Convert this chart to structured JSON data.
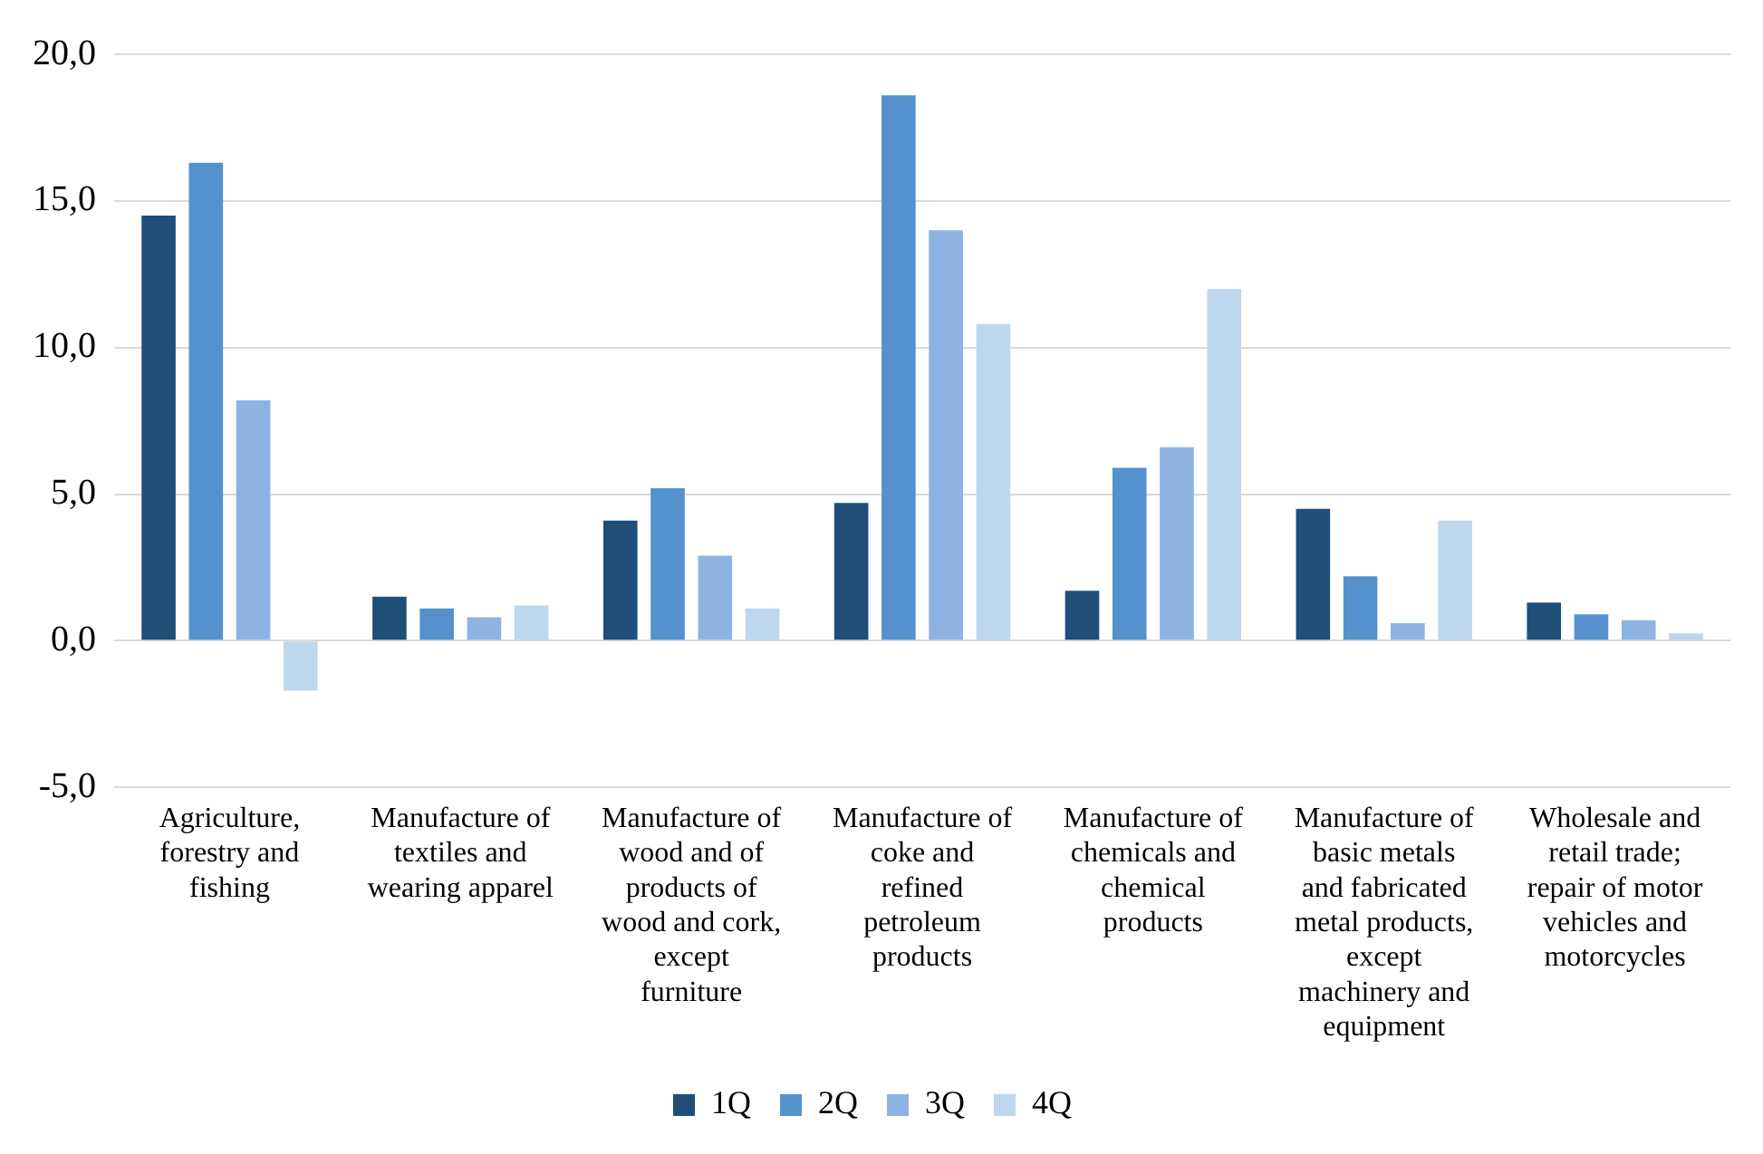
{
  "chart_data": {
    "type": "bar",
    "categories": [
      "Agriculture, forestry and fishing",
      "Manufacture of textiles and wearing apparel",
      "Manufacture of wood and of products of wood and cork, except furniture",
      "Manufacture of coke and refined petroleum products",
      "Manufacture of chemicals and chemical products",
      "Manufacture of basic metals and fabricated metal products, except machinery and equipment",
      "Wholesale and retail trade; repair of motor vehicles and motorcycles"
    ],
    "series": [
      {
        "name": "1Q",
        "color": "#1f4e79",
        "values": [
          14.5,
          1.5,
          4.1,
          4.7,
          1.7,
          4.5,
          1.3
        ]
      },
      {
        "name": "2Q",
        "color": "#5591cc",
        "values": [
          16.3,
          1.1,
          5.2,
          18.6,
          5.9,
          2.2,
          0.9
        ]
      },
      {
        "name": "3Q",
        "color": "#8db3e2",
        "values": [
          8.2,
          0.8,
          2.9,
          14.0,
          6.6,
          0.6,
          0.7
        ]
      },
      {
        "name": "4Q",
        "color": "#bdd7ee",
        "values": [
          -1.7,
          1.2,
          1.1,
          10.8,
          12.0,
          4.1,
          0.25
        ]
      }
    ],
    "ylim": [
      -5,
      20
    ],
    "yticks": [
      {
        "value": -5,
        "label": "-5,0"
      },
      {
        "value": 0,
        "label": "0,0"
      },
      {
        "value": 5,
        "label": "5,0"
      },
      {
        "value": 10,
        "label": "10,0"
      },
      {
        "value": 15,
        "label": "15,0"
      },
      {
        "value": 20,
        "label": "20,0"
      }
    ],
    "grid": "y",
    "legend": "bottom"
  }
}
